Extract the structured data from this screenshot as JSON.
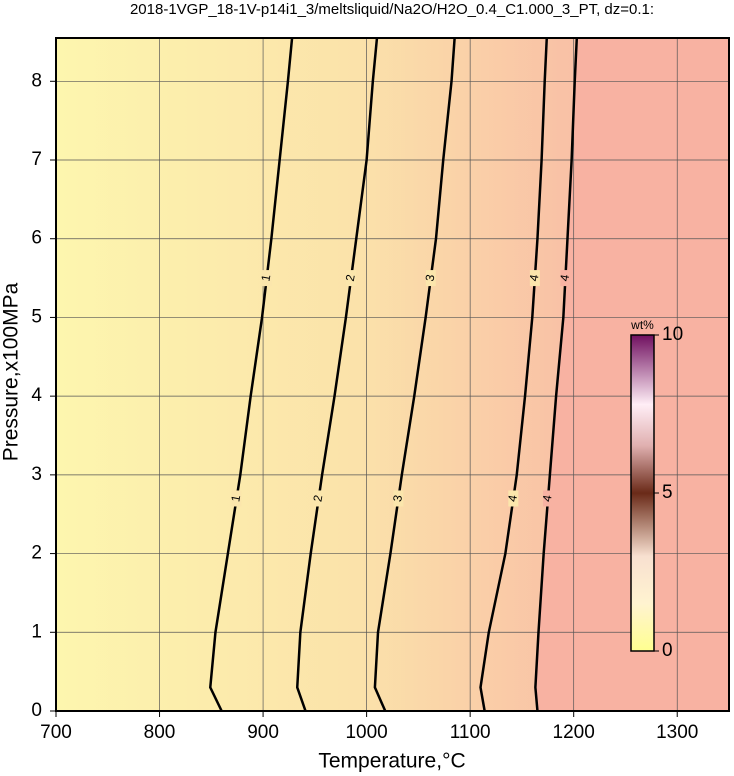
{
  "chart_data": {
    "type": "contour",
    "title": "2018-1VGP_18-1V-p14i1_3/meltsliquid/Na2O/H2O_0.4_C1.000_3_PT, dz=0.1:",
    "xlabel": "Temperature,°C",
    "ylabel": "Pressure,x100MPa",
    "xlim": [
      700,
      1350
    ],
    "xticks": [
      700,
      800,
      900,
      1000,
      1100,
      1200,
      1300
    ],
    "ylim": [
      0,
      8.55
    ],
    "yticks": [
      0,
      1,
      2,
      3,
      4,
      5,
      6,
      7,
      8
    ],
    "grid": true,
    "pressures": [
      0,
      0.3,
      1,
      2,
      3,
      4,
      5,
      6,
      7,
      8,
      8.55
    ],
    "contours": [
      {
        "level": 1,
        "x": [
          860,
          849,
          854,
          866,
          878,
          888,
          899,
          908,
          916,
          924,
          928
        ]
      },
      {
        "level": 2,
        "x": [
          941,
          933,
          936,
          946,
          957,
          969,
          980,
          990,
          1000,
          1006,
          1010
        ]
      },
      {
        "level": 3,
        "x": [
          1018,
          1008,
          1011,
          1023,
          1034,
          1046,
          1057,
          1067,
          1074,
          1082,
          1085
        ]
      },
      {
        "level": 4,
        "x": [
          1114,
          1110,
          1118,
          1134,
          1145,
          1153,
          1160,
          1165,
          1169,
          1172,
          1174
        ]
      },
      {
        "level": 4,
        "x": [
          1165,
          1163,
          1166,
          1171,
          1177,
          1183,
          1190,
          1194,
          1198,
          1201,
          1203
        ]
      }
    ],
    "colorbar": {
      "label": "wt%",
      "lim": [
        0,
        10
      ],
      "ticks": [
        0,
        5,
        10
      ]
    }
  }
}
